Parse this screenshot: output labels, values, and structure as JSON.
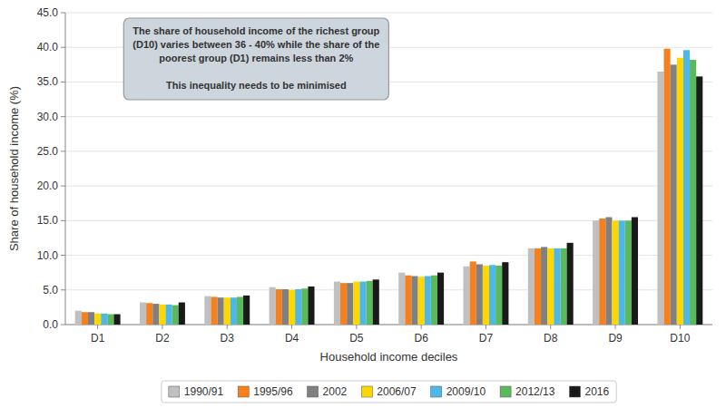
{
  "chart_data": {
    "type": "bar",
    "xlabel": "Household income deciles",
    "ylabel": "Share of household income (%)",
    "categories": [
      "D1",
      "D2",
      "D3",
      "D4",
      "D5",
      "D6",
      "D7",
      "D8",
      "D9",
      "D10"
    ],
    "series": [
      {
        "name": "1990/91",
        "color": "#c0c0c0",
        "values": [
          2.0,
          3.2,
          4.1,
          5.4,
          6.2,
          7.5,
          8.4,
          11.0,
          15.0,
          36.5
        ]
      },
      {
        "name": "1995/96",
        "color": "#f4801e",
        "values": [
          1.8,
          3.1,
          4.0,
          5.1,
          6.0,
          7.1,
          9.1,
          11.0,
          15.3,
          39.8
        ]
      },
      {
        "name": "2002",
        "color": "#808080",
        "values": [
          1.8,
          3.0,
          3.9,
          5.1,
          6.0,
          7.0,
          8.7,
          11.2,
          15.5,
          37.5
        ]
      },
      {
        "name": "2006/07",
        "color": "#ffd700",
        "values": [
          1.6,
          2.9,
          3.9,
          5.0,
          6.2,
          6.9,
          8.5,
          11.0,
          15.0,
          38.5
        ]
      },
      {
        "name": "2009/10",
        "color": "#4db8e8",
        "values": [
          1.6,
          2.9,
          3.9,
          5.1,
          6.2,
          7.0,
          8.6,
          11.0,
          15.0,
          39.6
        ]
      },
      {
        "name": "2012/13",
        "color": "#5cb85c",
        "values": [
          1.5,
          2.8,
          4.0,
          5.2,
          6.3,
          7.1,
          8.5,
          11.0,
          15.0,
          38.2
        ]
      },
      {
        "name": "2016",
        "color": "#1a1a1a",
        "values": [
          1.5,
          3.2,
          4.2,
          5.5,
          6.5,
          7.5,
          9.0,
          11.8,
          15.5,
          35.8
        ]
      }
    ],
    "ylim": [
      0,
      45.0
    ],
    "yticks": [
      {
        "value": 0.0,
        "label": "0.0"
      },
      {
        "value": 5.0,
        "label": "5.0"
      },
      {
        "value": 10.0,
        "label": "10.0"
      },
      {
        "value": 15.0,
        "label": "15.0"
      },
      {
        "value": 20.0,
        "label": "20.0"
      },
      {
        "value": 25.0,
        "label": "25.0"
      },
      {
        "value": 30.0,
        "label": "30.0"
      },
      {
        "value": 35.0,
        "label": "35.0"
      },
      {
        "value": 40.0,
        "label": "40.0"
      },
      {
        "value": 45.0,
        "label": "45.0"
      }
    ],
    "grid": true,
    "legend": "bottom",
    "annotation": [
      "The share of household income of the richest group",
      "(D10) varies between 36 - 40% while the share of the",
      "poorest group (D1) remains less than 2%",
      "",
      "This inequality needs to be minimised"
    ]
  }
}
